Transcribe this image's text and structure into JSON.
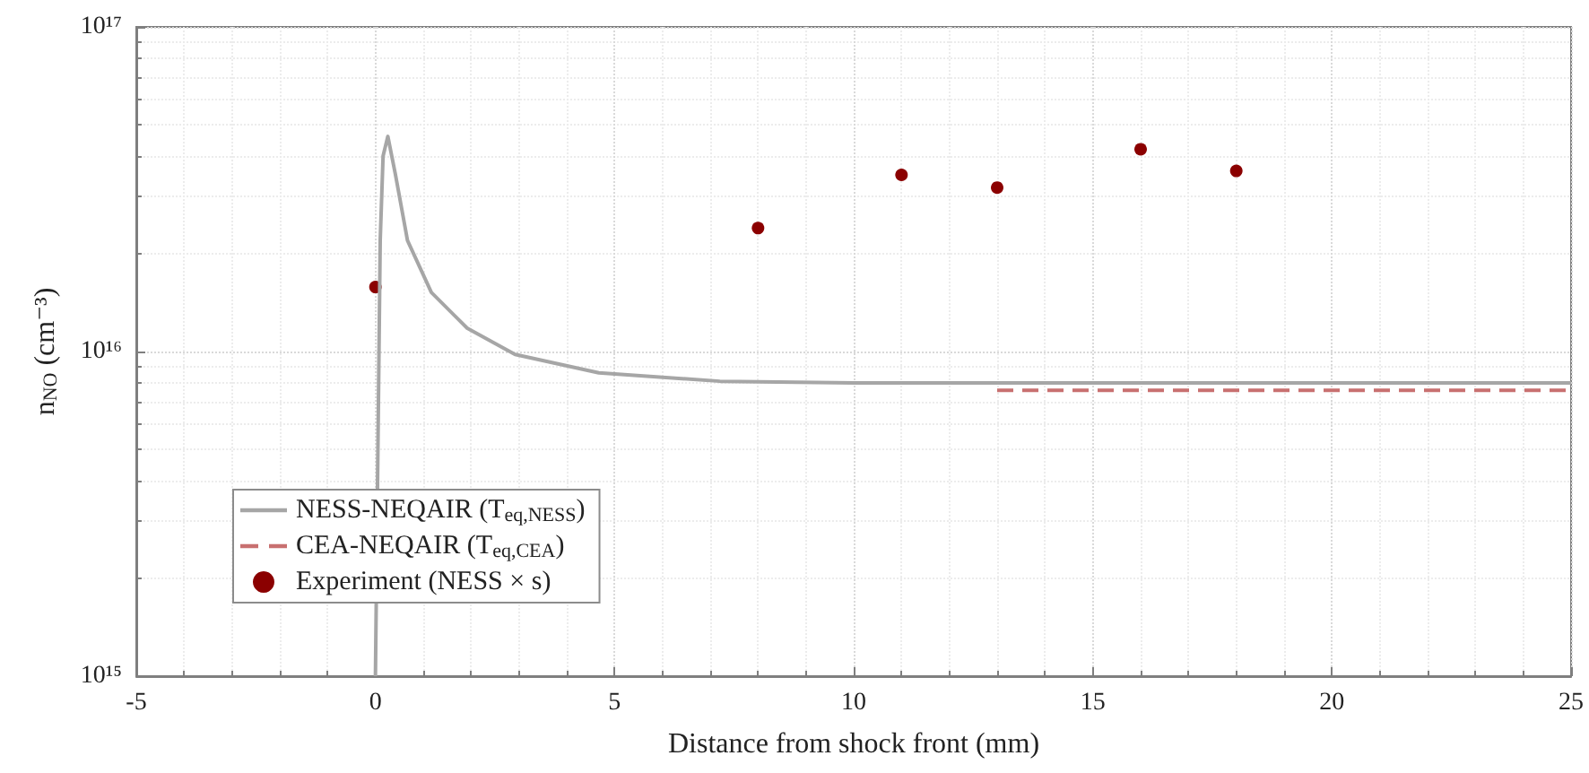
{
  "chart_data": {
    "type": "line",
    "xlabel": "Distance from shock front (mm)",
    "ylabel": "n$_{NO}$ (cm⁻³)",
    "xlim": [
      -5,
      25
    ],
    "xticks": [
      -5,
      0,
      5,
      10,
      15,
      20,
      25
    ],
    "ylim": [
      1000000000000000.0,
      1e+17
    ],
    "yticks": [
      {
        "value": 1000000000000000.0,
        "label": "10¹⁵"
      },
      {
        "value": 1e+16,
        "label": "10¹⁶"
      },
      {
        "value": 1e+17,
        "label": "10¹⁷"
      }
    ],
    "log": "y",
    "grid": true,
    "legend": "bottom left",
    "series": [
      {
        "name": "NESS-NEQAIR (T$_{eq,NESS}$)",
        "color": "#a6a6a6",
        "line_style": "solid",
        "marker": "none",
        "x": [
          0,
          0.1,
          0.16,
          0.26,
          0.42,
          0.67,
          1.17,
          1.92,
          2.92,
          4.67,
          7.2,
          10,
          15,
          20,
          25
        ],
        "values": [
          1000000000000000.0,
          2.2e+16,
          4e+16,
          4.6e+16,
          3.5e+16,
          2.2e+16,
          1.52e+16,
          1.18e+16,
          9800000000000000.0,
          8600000000000000.0,
          8100000000000000.0,
          8000000000000000.0,
          8000000000000000.0,
          8000000000000000.0,
          8000000000000000.0
        ]
      },
      {
        "name": "CEA-NEQAIR (T$_{eq,CEA}$)",
        "color": "#c87070",
        "line_style": "dashed",
        "marker": "none",
        "x": [
          13,
          25
        ],
        "values": [
          7600000000000000.0,
          7600000000000000.0
        ]
      },
      {
        "name": "Experiment (NESS × s)",
        "type": "scatter",
        "color": "#8b0000",
        "marker": "circle",
        "x": [
          0,
          8,
          11,
          13,
          16,
          18
        ],
        "values": [
          1.58e+16,
          2.4e+16,
          3.5e+16,
          3.2e+16,
          4.2e+16,
          3.6e+16
        ]
      }
    ]
  }
}
